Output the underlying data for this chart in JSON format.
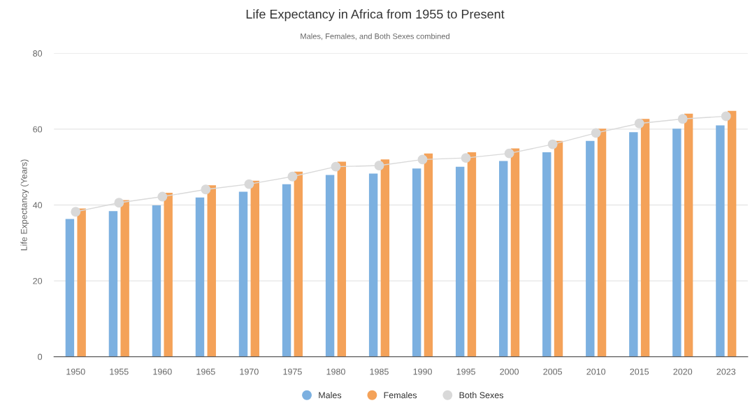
{
  "chart_data": {
    "type": "bar",
    "title": "Life Expectancy in Africa from 1955 to Present",
    "subtitle": "Males, Females, and Both Sexes combined",
    "ylabel": "Life Expectancy (Years)",
    "categories": [
      "1950",
      "1955",
      "1960",
      "1965",
      "1970",
      "1975",
      "1980",
      "1985",
      "1990",
      "1995",
      "2000",
      "2005",
      "2010",
      "2015",
      "2020",
      "2023"
    ],
    "series": [
      {
        "name": "Males",
        "color": "#7cb0e0",
        "values": [
          36.3,
          38.4,
          39.9,
          42.0,
          43.5,
          45.5,
          47.9,
          48.3,
          49.6,
          50.1,
          51.6,
          53.9,
          56.9,
          59.2,
          60.1,
          61.0
        ]
      },
      {
        "name": "Females",
        "color": "#f4a259",
        "values": [
          39.1,
          41.3,
          43.2,
          45.2,
          46.4,
          48.8,
          51.4,
          52.0,
          53.6,
          53.9,
          54.9,
          56.9,
          60.1,
          62.7,
          64.1,
          64.8
        ]
      },
      {
        "name": "Both Sexes",
        "type": "line",
        "color": "#d9d9d9",
        "marker": "circle",
        "values": [
          38.2,
          40.6,
          42.2,
          44.1,
          45.5,
          47.5,
          50.1,
          50.4,
          52.0,
          52.4,
          53.6,
          56.0,
          59.0,
          61.5,
          62.7,
          63.4
        ]
      }
    ],
    "ylim": [
      0,
      80
    ],
    "yticks": [
      0,
      20,
      40,
      60,
      80
    ],
    "grid": "y",
    "legend": "bottom"
  }
}
